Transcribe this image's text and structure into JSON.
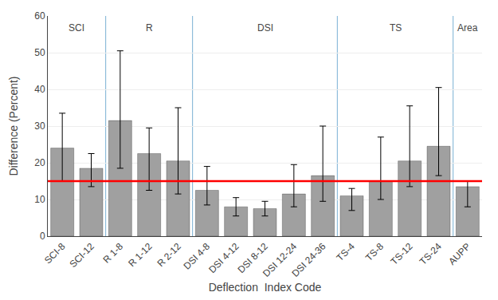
{
  "chart_data": {
    "type": "bar",
    "xlabel": "Deflection  Index Code",
    "ylabel": "Difference (Percent)",
    "categories": [
      "SCI-8",
      "SCI-12",
      "R 1-8",
      "R 1-12",
      "R 2-12",
      "DSI 4-8",
      "DSI 4-12",
      "DSI 8-12",
      "DSI 12-24",
      "DSI 24-36",
      "TS-4",
      "TS-8",
      "TS-12",
      "TS-24",
      "AUPP"
    ],
    "values": [
      24,
      18.5,
      31.5,
      22.5,
      20.5,
      12.5,
      8.0,
      7.5,
      11.5,
      16.5,
      11.0,
      15.0,
      20.5,
      24.5,
      13.5
    ],
    "error_low": [
      9.0,
      5.0,
      13.0,
      10.0,
      9.0,
      4.0,
      2.5,
      2.0,
      3.5,
      7.0,
      4.0,
      5.0,
      7.0,
      8.0,
      5.5
    ],
    "error_high": [
      9.5,
      4.0,
      19.0,
      7.0,
      14.5,
      6.5,
      2.5,
      2.0,
      8.0,
      13.5,
      2.0,
      12.0,
      15.0,
      16.0,
      1.5
    ],
    "color": "#a0a0a0",
    "threshold": {
      "value": 15,
      "color": "#ff0000"
    },
    "groups": {
      "color": "#7ab0d4",
      "items": [
        {
          "label": "SCI",
          "categories": [
            "SCI-8",
            "SCI-12"
          ]
        },
        {
          "label": "R",
          "categories": [
            "R 1-8",
            "R 1-12",
            "R 2-12"
          ]
        },
        {
          "label": "DSI",
          "categories": [
            "DSI 4-8",
            "DSI 4-12",
            "DSI 8-12",
            "DSI 12-24",
            "DSI 24-36"
          ]
        },
        {
          "label": "TS",
          "categories": [
            "TS-4",
            "TS-8",
            "TS-12",
            "TS-24"
          ]
        },
        {
          "label": "Area",
          "categories": [
            "AUPP"
          ]
        }
      ]
    },
    "ylim": [
      0,
      60
    ],
    "yticks": [
      0,
      10,
      20,
      30,
      40,
      50,
      60
    ],
    "grid": true
  }
}
